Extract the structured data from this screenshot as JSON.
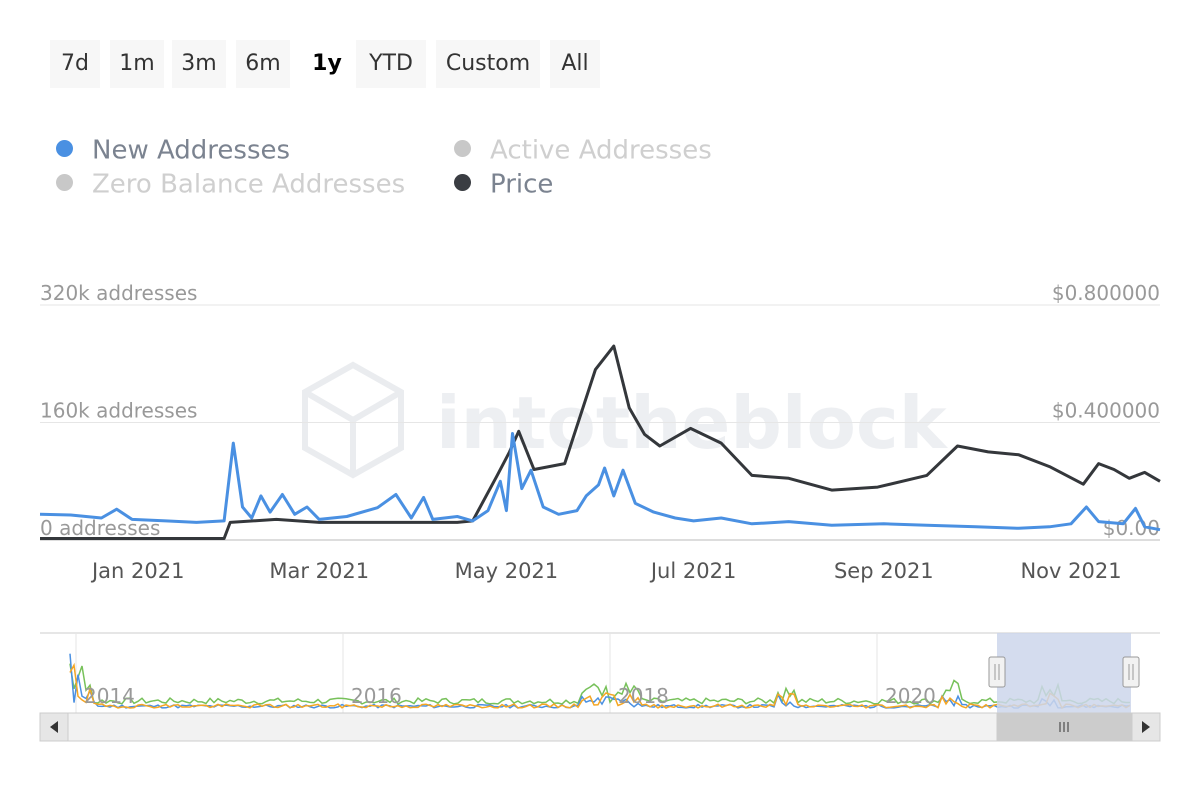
{
  "range_selector": {
    "buttons": [
      {
        "label": "7d",
        "active": false
      },
      {
        "label": "1m",
        "active": false
      },
      {
        "label": "3m",
        "active": false
      },
      {
        "label": "6m",
        "active": false
      },
      {
        "label": "1y",
        "active": true
      },
      {
        "label": "YTD",
        "active": false
      },
      {
        "label": "Custom",
        "active": false
      },
      {
        "label": "All",
        "active": false
      }
    ]
  },
  "legend": {
    "items": [
      {
        "label": "New Addresses",
        "color": "#4a90e2",
        "enabled": true
      },
      {
        "label": "Active Addresses",
        "color": "#c8c8c8",
        "enabled": false
      },
      {
        "label": "Zero Balance Addresses",
        "color": "#c8c8c8",
        "enabled": false
      },
      {
        "label": "Price",
        "color": "#3a3d42",
        "enabled": true
      }
    ]
  },
  "colors": {
    "new_addresses": "#4a90e2",
    "price": "#34373b",
    "active_addresses_nav": "#77c15a",
    "zero_balance_nav": "#f5a623",
    "gridline": "#e6e6e6",
    "axis_label": "#999999",
    "navigator_mask": "#ccd6eb",
    "watermark": "#e9ebee"
  },
  "watermark": "intotheblock",
  "chart_data": {
    "type": "line",
    "x_range": [
      "2020-11-30",
      "2021-11-30"
    ],
    "x_ticks": [
      "Jan 2021",
      "Mar 2021",
      "May 2021",
      "Jul 2021",
      "Sep 2021",
      "Nov 2021"
    ],
    "y_left": {
      "ticks": [
        "320k addresses",
        "160k addresses",
        "0 addresses"
      ],
      "range": [
        0,
        320000
      ]
    },
    "y_right": {
      "ticks": [
        "$0.800000",
        "$0.400000",
        "$0.00"
      ],
      "range": [
        0,
        0.8
      ]
    },
    "series": [
      {
        "name": "New Addresses",
        "axis": "left",
        "points": [
          [
            "2020-11-30",
            35000
          ],
          [
            "2020-12-10",
            34000
          ],
          [
            "2020-12-20",
            30000
          ],
          [
            "2020-12-25",
            42000
          ],
          [
            "2020-12-30",
            28000
          ],
          [
            "2021-01-10",
            26000
          ],
          [
            "2021-01-20",
            24000
          ],
          [
            "2021-01-29",
            26000
          ],
          [
            "2021-02-01",
            132000
          ],
          [
            "2021-02-04",
            45000
          ],
          [
            "2021-02-07",
            30000
          ],
          [
            "2021-02-10",
            60000
          ],
          [
            "2021-02-13",
            38000
          ],
          [
            "2021-02-17",
            62000
          ],
          [
            "2021-02-21",
            35000
          ],
          [
            "2021-02-25",
            45000
          ],
          [
            "2021-03-01",
            28000
          ],
          [
            "2021-03-10",
            32000
          ],
          [
            "2021-03-20",
            44000
          ],
          [
            "2021-03-26",
            62000
          ],
          [
            "2021-03-31",
            30000
          ],
          [
            "2021-04-04",
            58000
          ],
          [
            "2021-04-07",
            28000
          ],
          [
            "2021-04-15",
            32000
          ],
          [
            "2021-04-20",
            26000
          ],
          [
            "2021-04-25",
            40000
          ],
          [
            "2021-04-29",
            80000
          ],
          [
            "2021-05-01",
            40000
          ],
          [
            "2021-05-03",
            145000
          ],
          [
            "2021-05-06",
            70000
          ],
          [
            "2021-05-09",
            95000
          ],
          [
            "2021-05-13",
            45000
          ],
          [
            "2021-05-18",
            35000
          ],
          [
            "2021-05-24",
            40000
          ],
          [
            "2021-05-27",
            60000
          ],
          [
            "2021-05-31",
            75000
          ],
          [
            "2021-06-02",
            98000
          ],
          [
            "2021-06-05",
            60000
          ],
          [
            "2021-06-08",
            95000
          ],
          [
            "2021-06-12",
            50000
          ],
          [
            "2021-06-18",
            38000
          ],
          [
            "2021-06-25",
            30000
          ],
          [
            "2021-07-01",
            26000
          ],
          [
            "2021-07-10",
            30000
          ],
          [
            "2021-07-20",
            22000
          ],
          [
            "2021-08-01",
            25000
          ],
          [
            "2021-08-15",
            20000
          ],
          [
            "2021-09-01",
            22000
          ],
          [
            "2021-09-15",
            20000
          ],
          [
            "2021-10-01",
            18000
          ],
          [
            "2021-10-15",
            16000
          ],
          [
            "2021-10-25",
            18000
          ],
          [
            "2021-11-01",
            22000
          ],
          [
            "2021-11-06",
            45000
          ],
          [
            "2021-11-10",
            25000
          ],
          [
            "2021-11-18",
            22000
          ],
          [
            "2021-11-22",
            43000
          ],
          [
            "2021-11-25",
            18000
          ],
          [
            "2021-11-30",
            14000
          ]
        ]
      },
      {
        "name": "Price",
        "axis": "right",
        "points": [
          [
            "2020-11-30",
            0.005
          ],
          [
            "2021-01-29",
            0.005
          ],
          [
            "2021-01-31",
            0.06
          ],
          [
            "2021-02-15",
            0.07
          ],
          [
            "2021-03-01",
            0.06
          ],
          [
            "2021-03-31",
            0.06
          ],
          [
            "2021-04-15",
            0.06
          ],
          [
            "2021-04-20",
            0.065
          ],
          [
            "2021-04-28",
            0.22
          ],
          [
            "2021-05-02",
            0.3
          ],
          [
            "2021-05-05",
            0.37
          ],
          [
            "2021-05-10",
            0.24
          ],
          [
            "2021-05-20",
            0.26
          ],
          [
            "2021-05-30",
            0.58
          ],
          [
            "2021-06-05",
            0.66
          ],
          [
            "2021-06-10",
            0.45
          ],
          [
            "2021-06-15",
            0.36
          ],
          [
            "2021-06-20",
            0.32
          ],
          [
            "2021-06-30",
            0.38
          ],
          [
            "2021-07-10",
            0.33
          ],
          [
            "2021-07-20",
            0.22
          ],
          [
            "2021-08-01",
            0.21
          ],
          [
            "2021-08-15",
            0.17
          ],
          [
            "2021-08-30",
            0.18
          ],
          [
            "2021-09-15",
            0.22
          ],
          [
            "2021-09-25",
            0.32
          ],
          [
            "2021-10-05",
            0.3
          ],
          [
            "2021-10-15",
            0.29
          ],
          [
            "2021-10-25",
            0.25
          ],
          [
            "2021-11-05",
            0.19
          ],
          [
            "2021-11-10",
            0.26
          ],
          [
            "2021-11-15",
            0.24
          ],
          [
            "2021-11-20",
            0.21
          ],
          [
            "2021-11-25",
            0.23
          ],
          [
            "2021-11-30",
            0.2
          ]
        ]
      }
    ],
    "navigator": {
      "x_ticks": [
        "2014",
        "2016",
        "2018",
        "2020"
      ],
      "selected_range": [
        "2020-11-30",
        "2021-11-30"
      ],
      "series": [
        {
          "name": "Active Addresses",
          "color": "#77c15a"
        },
        {
          "name": "New Addresses",
          "color": "#4a90e2"
        },
        {
          "name": "Zero Balance Addresses",
          "color": "#f5a623"
        }
      ]
    },
    "grid": true,
    "legend_position": "top-left"
  }
}
